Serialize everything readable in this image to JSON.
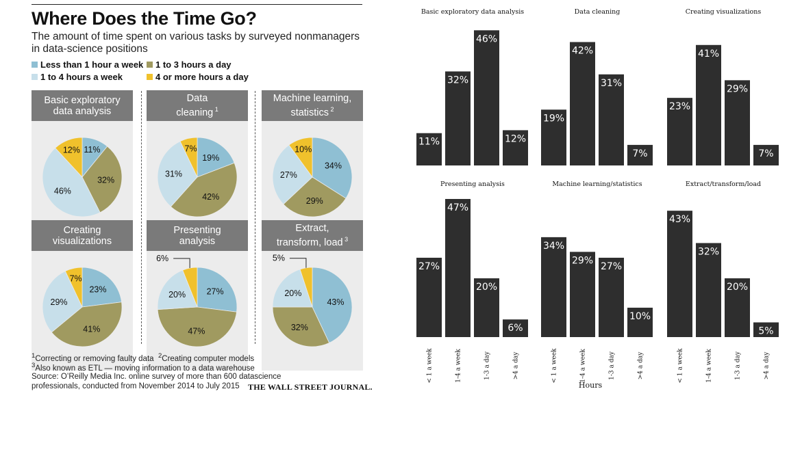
{
  "left": {
    "title": "Where Does the Time Go?",
    "subtitle": "The amount of time spent on various tasks by surveyed nonmanagers in data-science positions",
    "legend": [
      {
        "label": "Less than 1 hour a week",
        "color": "#8fbfd3"
      },
      {
        "label": "1 to 3 hours a day",
        "color": "#a09a60"
      },
      {
        "label": "1 to 4 hours a week",
        "color": "#c7dfea"
      },
      {
        "label": "4 or more hours a day",
        "color": "#f0c12c"
      }
    ],
    "footnotes": {
      "n1": "Correcting or removing faulty data",
      "n2": "Creating computer models",
      "n3": "Also known as ETL — moving information to a data warehouse",
      "source1": "Source: O’Reilly Media Inc. online survey of more than 600 datascience",
      "source2": "professionals, conducted from November 2014 to July 2015",
      "masthead": "THE WALL STREET JOURNAL."
    }
  },
  "chart_data": [
    {
      "type": "pie",
      "panels": [
        {
          "title": [
            "Basic exploratory",
            "data analysis"
          ],
          "note": "",
          "values": [
            11,
            32,
            46,
            12
          ]
        },
        {
          "title": [
            "Data",
            "cleaning"
          ],
          "note": "1",
          "values": [
            19,
            42,
            31,
            7
          ]
        },
        {
          "title": [
            "Machine learning,",
            "statistics"
          ],
          "note": "2",
          "values": [
            34,
            29,
            27,
            10
          ]
        },
        {
          "title": [
            "Creating",
            "visualizations"
          ],
          "note": "",
          "values": [
            23,
            41,
            29,
            7
          ]
        },
        {
          "title": [
            "Presenting",
            "analysis"
          ],
          "note": "",
          "values": [
            27,
            47,
            20,
            6
          ]
        },
        {
          "title": [
            "Extract,",
            "transform, load"
          ],
          "note": "3",
          "values": [
            43,
            32,
            20,
            5
          ]
        }
      ],
      "slice_order": [
        "Less than 1 hour a week",
        "1 to 4 hours a week",
        "1 to 3 hours a day",
        "4 or more hours a day"
      ]
    },
    {
      "type": "bar",
      "categories": [
        "< 1 a week",
        "1-4 a week",
        "1-3 a day",
        ">4 a day"
      ],
      "xlabel": "Hours",
      "ylim": [
        0,
        47
      ],
      "bar_color": "#2e2e2e",
      "panels": [
        {
          "title": "Basic exploratory data analysis",
          "values": [
            11,
            32,
            46,
            12
          ]
        },
        {
          "title": "Data cleaning",
          "values": [
            19,
            42,
            31,
            7
          ]
        },
        {
          "title": "Creating visualizations",
          "values": [
            23,
            41,
            29,
            7
          ]
        },
        {
          "title": "Presenting analysis",
          "values": [
            27,
            47,
            20,
            6
          ]
        },
        {
          "title": "Machine learning/statistics",
          "values": [
            34,
            29,
            27,
            10
          ]
        },
        {
          "title": "Extract/transform/load",
          "values": [
            43,
            32,
            20,
            5
          ]
        }
      ]
    }
  ]
}
